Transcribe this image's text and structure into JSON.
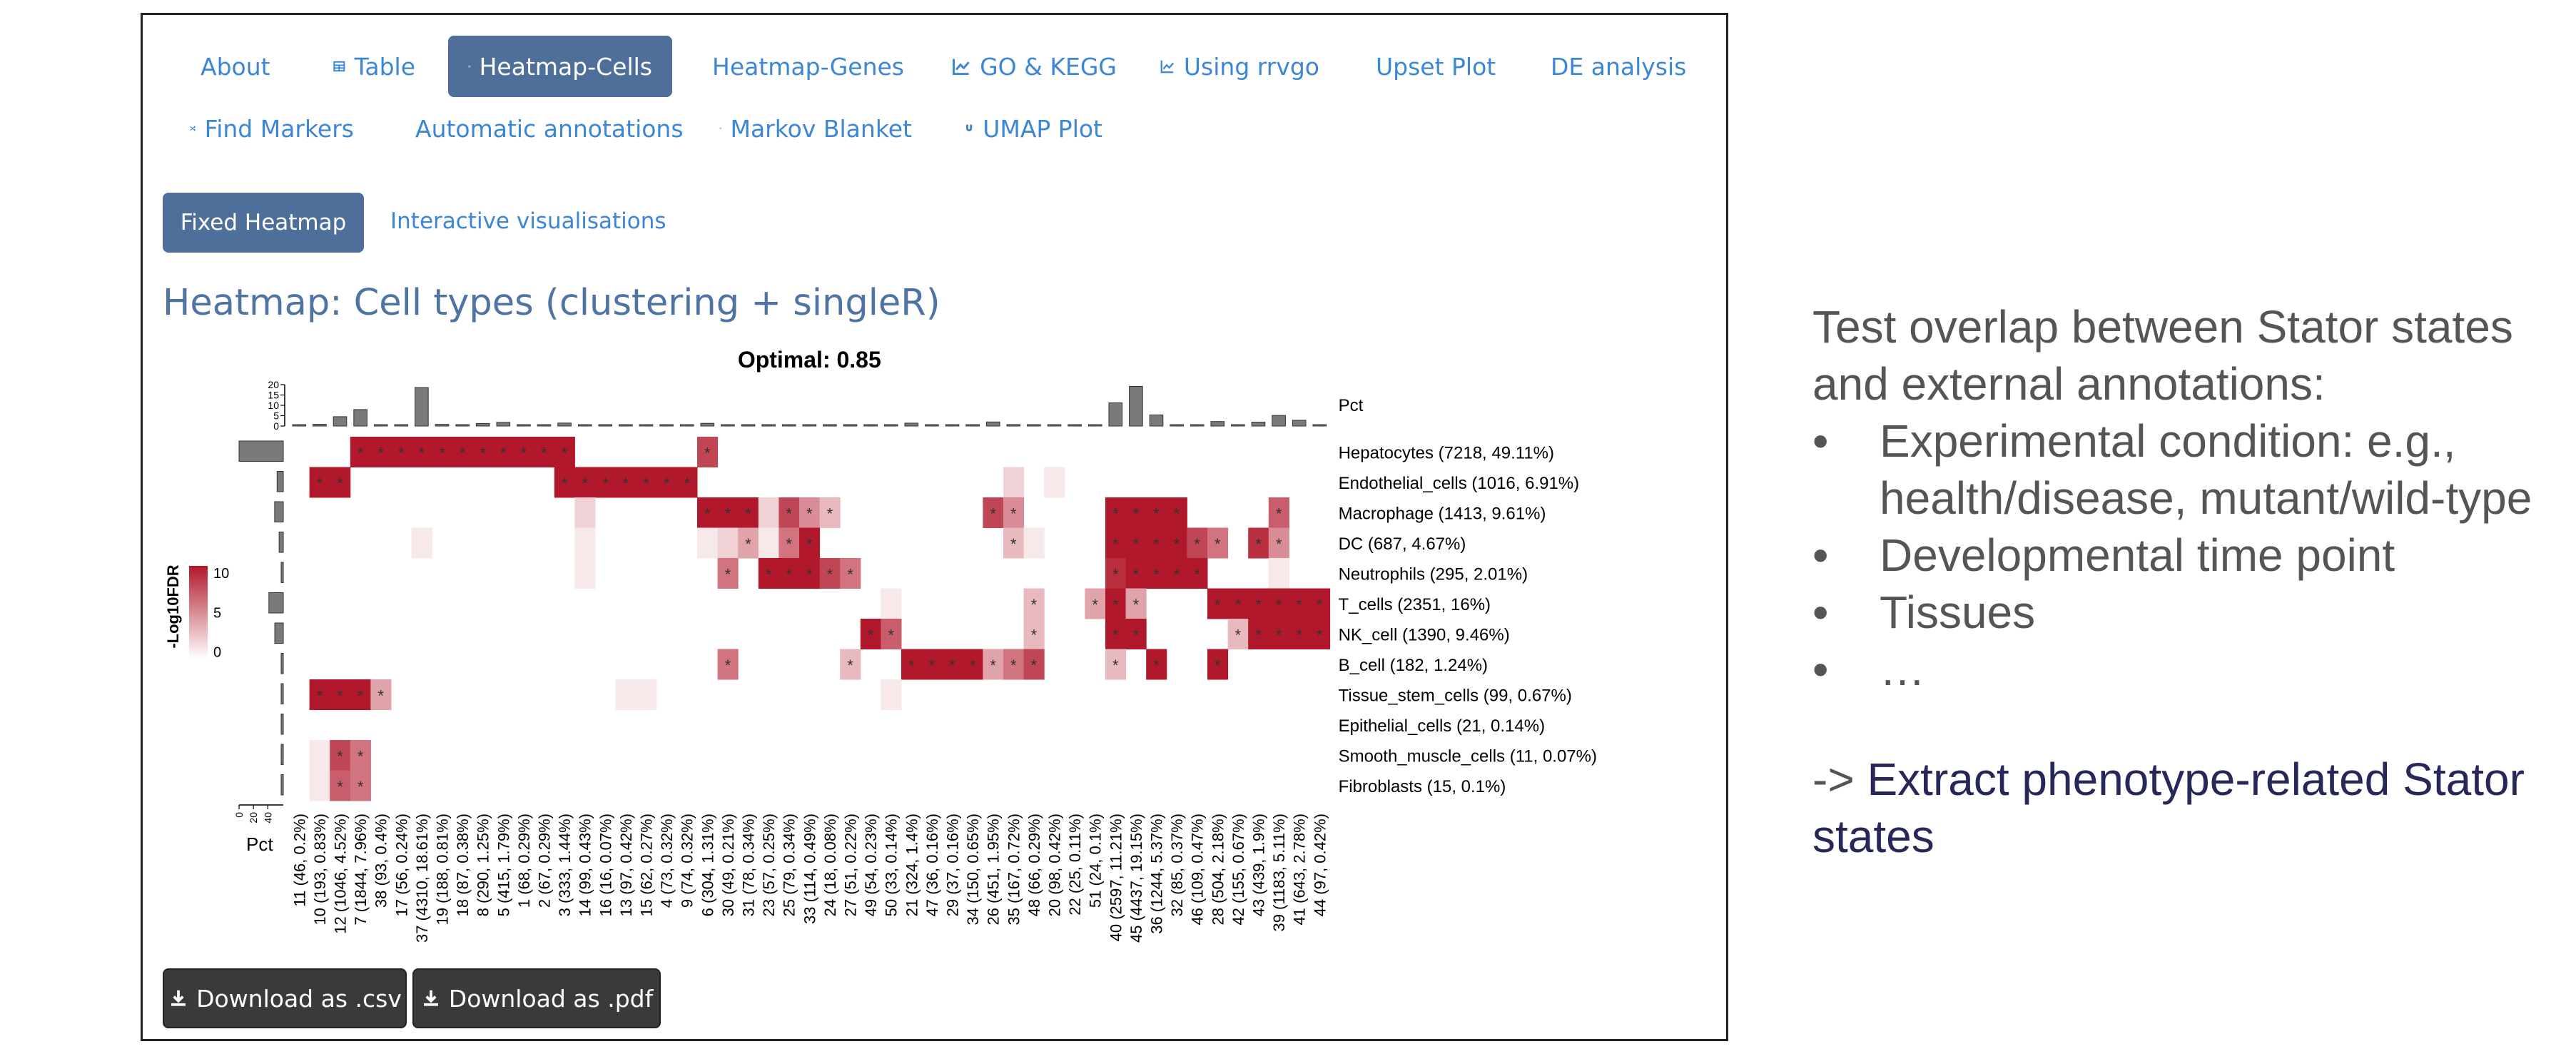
{
  "tabs": [
    {
      "label": "About",
      "icon": "info-circle-icon",
      "active": false
    },
    {
      "label": "Table",
      "icon": "table-icon",
      "active": false
    },
    {
      "label": "Heatmap-Cells",
      "icon": "map-icon",
      "active": true
    },
    {
      "label": "Heatmap-Genes",
      "icon": "map-icon",
      "active": false
    },
    {
      "label": "GO & KEGG",
      "icon": "line-chart-icon",
      "active": false
    },
    {
      "label": "Using rrvgo",
      "icon": "line-chart-icon",
      "active": false
    },
    {
      "label": "Upset Plot",
      "icon": "bar-chart-icon",
      "active": false
    },
    {
      "label": "DE analysis",
      "icon": "shuffle-icon",
      "active": false
    },
    {
      "label": "Find Markers",
      "icon": "shuffle-icon",
      "active": false
    },
    {
      "label": "Automatic annotations",
      "icon": "shuffle-icon",
      "active": false
    },
    {
      "label": "Markov Blanket",
      "icon": "paper-plane-icon",
      "active": false
    },
    {
      "label": "UMAP Plot",
      "icon": "magnet-icon",
      "active": false
    }
  ],
  "subtabs": {
    "fixed": "Fixed Heatmap",
    "interactive": "Interactive visualisations"
  },
  "heading": "Heatmap: Cell types (clustering + singleR)",
  "downloads": {
    "csv": "Download as .csv",
    "pdf": "Download as .pdf"
  },
  "colors": {
    "accent": "#4f6f9b",
    "link": "#3b86d6",
    "heat_high": "#b2182b",
    "bar": "#6b6b6b"
  },
  "chart_data": {
    "type": "heatmap",
    "title": "Optimal: 0.85",
    "legend_title": "-Log10FDR",
    "legend_ticks": [
      10,
      5,
      0
    ],
    "top_bar_label": "Pct",
    "top_bar_ticks": [
      20,
      15,
      10,
      5,
      0
    ],
    "left_bar_label": "Pct",
    "left_bar_ticks": [
      0,
      20,
      40
    ],
    "columns": [
      "11 (46, 0.2%)",
      "10 (193, 0.83%)",
      "12 (1046, 4.52%)",
      "7 (1844, 7.96%)",
      "38 (93, 0.4%)",
      "17 (56, 0.24%)",
      "37 (4310, 18.61%)",
      "19 (188, 0.81%)",
      "18 (87, 0.38%)",
      "8 (290, 1.25%)",
      "5 (415, 1.79%)",
      "1 (68, 0.29%)",
      "2 (67, 0.29%)",
      "3 (333, 1.44%)",
      "14 (99, 0.43%)",
      "16 (16, 0.07%)",
      "13 (97, 0.42%)",
      "15 (62, 0.27%)",
      "4 (73, 0.32%)",
      "9 (74, 0.32%)",
      "6 (304, 1.31%)",
      "30 (49, 0.21%)",
      "31 (78, 0.34%)",
      "23 (57, 0.25%)",
      "25 (79, 0.34%)",
      "33 (114, 0.49%)",
      "24 (18, 0.08%)",
      "27 (51, 0.22%)",
      "49 (54, 0.23%)",
      "50 (33, 0.14%)",
      "21 (324, 1.4%)",
      "47 (36, 0.16%)",
      "29 (37, 0.16%)",
      "34 (150, 0.65%)",
      "26 (451, 1.95%)",
      "35 (167, 0.72%)",
      "48 (66, 0.29%)",
      "20 (98, 0.42%)",
      "22 (25, 0.11%)",
      "51 (24, 0.1%)",
      "40 (2597, 11.21%)",
      "45 (4437, 19.15%)",
      "36 (1244, 5.37%)",
      "32 (85, 0.37%)",
      "46 (109, 0.47%)",
      "28 (504, 2.18%)",
      "42 (155, 0.67%)",
      "43 (439, 1.9%)",
      "39 (1183, 5.11%)",
      "41 (643, 2.78%)",
      "44 (97, 0.42%)"
    ],
    "column_pct": [
      0.2,
      0.83,
      4.52,
      7.96,
      0.4,
      0.24,
      18.61,
      0.81,
      0.38,
      1.25,
      1.79,
      0.29,
      0.29,
      1.44,
      0.43,
      0.07,
      0.42,
      0.27,
      0.32,
      0.32,
      1.31,
      0.21,
      0.34,
      0.25,
      0.34,
      0.49,
      0.08,
      0.22,
      0.23,
      0.14,
      1.4,
      0.16,
      0.16,
      0.65,
      1.95,
      0.72,
      0.29,
      0.42,
      0.11,
      0.1,
      11.21,
      19.15,
      5.37,
      0.37,
      0.47,
      2.18,
      0.67,
      1.9,
      5.11,
      2.78,
      0.42
    ],
    "rows": [
      {
        "label": "Hepatocytes (7218, 49.11%)",
        "pct": 49.11
      },
      {
        "label": "Endothelial_cells (1016, 6.91%)",
        "pct": 6.91
      },
      {
        "label": "Macrophage (1413, 9.61%)",
        "pct": 9.61
      },
      {
        "label": "DC (687, 4.67%)",
        "pct": 4.67
      },
      {
        "label": "Neutrophils (295, 2.01%)",
        "pct": 2.01
      },
      {
        "label": "T_cells (2351, 16%)",
        "pct": 16
      },
      {
        "label": "NK_cell (1390, 9.46%)",
        "pct": 9.46
      },
      {
        "label": "B_cell (182, 1.24%)",
        "pct": 1.24
      },
      {
        "label": "Tissue_stem_cells (99, 0.67%)",
        "pct": 0.67
      },
      {
        "label": "Epithelial_cells (21, 0.14%)",
        "pct": 0.14
      },
      {
        "label": "Smooth_muscle_cells (11, 0.07%)",
        "pct": 0.07
      },
      {
        "label": "Fibroblasts (15, 0.1%)",
        "pct": 0.1
      }
    ],
    "values": [
      [
        0,
        0,
        0,
        10,
        10,
        10,
        10,
        10,
        10,
        10,
        10,
        10,
        10,
        10,
        0,
        0,
        0,
        0,
        0,
        0,
        8,
        0,
        0,
        0,
        0,
        0,
        0,
        0,
        0,
        0,
        0,
        0,
        0,
        0,
        0,
        0,
        0,
        0,
        0,
        0,
        0,
        0,
        0,
        0,
        0,
        0,
        0,
        0,
        0,
        0,
        0
      ],
      [
        0,
        10,
        10,
        0,
        0,
        0,
        0,
        0,
        0,
        0,
        0,
        0,
        0,
        10,
        10,
        10,
        10,
        10,
        10,
        10,
        0,
        0,
        0,
        0,
        0,
        0,
        0,
        0,
        0,
        0,
        0,
        0,
        0,
        0,
        0,
        2,
        0,
        1,
        0,
        0,
        0,
        0,
        0,
        0,
        0,
        0,
        0,
        0,
        0,
        0,
        0
      ],
      [
        0,
        0,
        0,
        0,
        0,
        0,
        0,
        0,
        0,
        0,
        0,
        0,
        0,
        0,
        2,
        0,
        0,
        0,
        0,
        0,
        10,
        10,
        10,
        2,
        8,
        5,
        3,
        0,
        0,
        0,
        0,
        0,
        0,
        0,
        8,
        5,
        0,
        0,
        0,
        0,
        10,
        10,
        10,
        10,
        0,
        0,
        0,
        0,
        7,
        0,
        0
      ],
      [
        0,
        0,
        0,
        0,
        0,
        0,
        1,
        0,
        0,
        0,
        0,
        0,
        0,
        0,
        1,
        0,
        0,
        0,
        0,
        0,
        1,
        2,
        4,
        1,
        6,
        10,
        0,
        0,
        0,
        0,
        0,
        0,
        0,
        0,
        0,
        3,
        1,
        0,
        0,
        0,
        10,
        10,
        10,
        10,
        8,
        6,
        0,
        9,
        5,
        0,
        0
      ],
      [
        0,
        0,
        0,
        0,
        0,
        0,
        0,
        0,
        0,
        0,
        0,
        0,
        0,
        0,
        1,
        0,
        0,
        0,
        0,
        0,
        0,
        6,
        0,
        10,
        10,
        10,
        8,
        6,
        0,
        0,
        0,
        0,
        0,
        0,
        0,
        0,
        0,
        0,
        0,
        0,
        9,
        10,
        10,
        10,
        10,
        0,
        0,
        0,
        1,
        0,
        0
      ],
      [
        0,
        0,
        0,
        0,
        0,
        0,
        0,
        0,
        0,
        0,
        0,
        0,
        0,
        0,
        0,
        0,
        0,
        0,
        0,
        0,
        0,
        0,
        0,
        0,
        0,
        0,
        0,
        0,
        0,
        1,
        0,
        0,
        0,
        0,
        0,
        0,
        3,
        0,
        0,
        4,
        10,
        4,
        0,
        0,
        0,
        10,
        10,
        10,
        10,
        10,
        10
      ],
      [
        0,
        0,
        0,
        0,
        0,
        0,
        0,
        0,
        0,
        0,
        0,
        0,
        0,
        0,
        0,
        0,
        0,
        0,
        0,
        0,
        0,
        0,
        0,
        0,
        0,
        0,
        0,
        0,
        10,
        7,
        0,
        0,
        0,
        0,
        0,
        0,
        3,
        0,
        0,
        0,
        10,
        10,
        0,
        0,
        0,
        0,
        3,
        10,
        10,
        10,
        10
      ],
      [
        0,
        0,
        0,
        0,
        0,
        0,
        0,
        0,
        0,
        0,
        0,
        0,
        0,
        0,
        0,
        0,
        0,
        0,
        0,
        0,
        0,
        6,
        0,
        0,
        0,
        0,
        0,
        3,
        0,
        0,
        10,
        10,
        10,
        10,
        4,
        6,
        8,
        0,
        0,
        0,
        3,
        0,
        10,
        0,
        0,
        10,
        0,
        0,
        0,
        0,
        0
      ],
      [
        0,
        10,
        10,
        10,
        4,
        0,
        0,
        0,
        0,
        0,
        0,
        0,
        0,
        0,
        0,
        0,
        1,
        1,
        0,
        0,
        0,
        0,
        0,
        0,
        0,
        0,
        0,
        0,
        0,
        1,
        0,
        0,
        0,
        0,
        0,
        0,
        0,
        0,
        0,
        0,
        0,
        0,
        0,
        0,
        0,
        0,
        0,
        0,
        0,
        0,
        0
      ],
      [
        0,
        0,
        0,
        0,
        0,
        0,
        0,
        0,
        0,
        0,
        0,
        0,
        0,
        0,
        0,
        0,
        0,
        0,
        0,
        0,
        0,
        0,
        0,
        0,
        0,
        0,
        0,
        0,
        0,
        0,
        0,
        0,
        0,
        0,
        0,
        0,
        0,
        0,
        0,
        0,
        0,
        0,
        0,
        0,
        0,
        0,
        0,
        0,
        0,
        0,
        0
      ],
      [
        0,
        1,
        8,
        6,
        0,
        0,
        0,
        0,
        0,
        0,
        0,
        0,
        0,
        0,
        0,
        0,
        0,
        0,
        0,
        0,
        0,
        0,
        0,
        0,
        0,
        0,
        0,
        0,
        0,
        0,
        0,
        0,
        0,
        0,
        0,
        0,
        0,
        0,
        0,
        0,
        0,
        0,
        0,
        0,
        0,
        0,
        0,
        0,
        0,
        0,
        0
      ],
      [
        0,
        1,
        7,
        6,
        0,
        0,
        0,
        0,
        0,
        0,
        0,
        0,
        0,
        0,
        0,
        0,
        0,
        0,
        0,
        0,
        0,
        0,
        0,
        0,
        0,
        0,
        0,
        0,
        0,
        0,
        0,
        0,
        0,
        0,
        0,
        0,
        0,
        0,
        0,
        0,
        0,
        0,
        0,
        0,
        0,
        0,
        0,
        0,
        0,
        0,
        0
      ]
    ],
    "sig_mark": "*"
  },
  "notes": {
    "intro_line1": "Test overlap between Stator states",
    "intro_line2": "and external annotations:",
    "bullets": [
      [
        "Experimental condition: e.g.,",
        "health/disease, mutant/wild-type"
      ],
      [
        "Developmental time point"
      ],
      [
        "Tissues"
      ],
      [
        "…"
      ]
    ],
    "conclusion_prefix": "-> ",
    "conclusion_highlight": "Extract phenotype-related Stator",
    "conclusion_line2": "states"
  }
}
